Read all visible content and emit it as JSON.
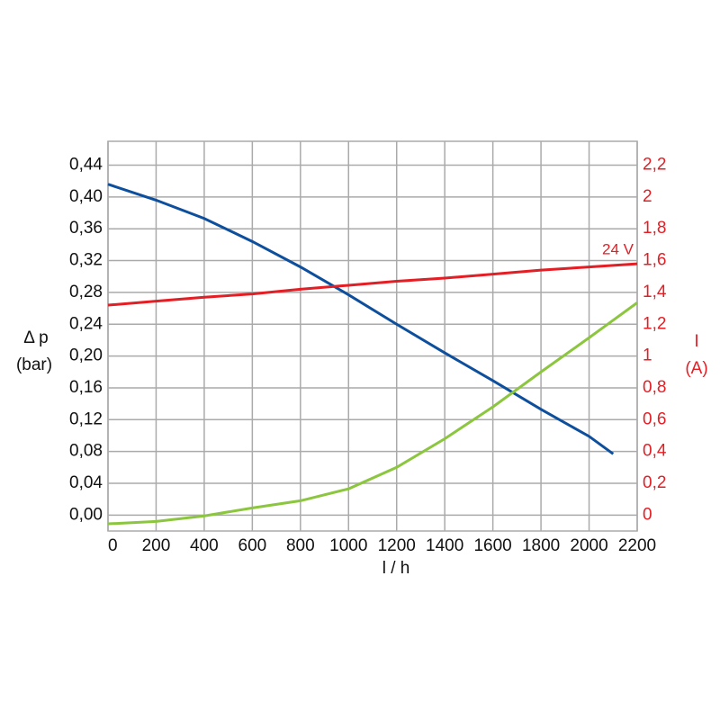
{
  "chart_data": {
    "type": "line",
    "x": [
      0,
      200,
      400,
      600,
      800,
      1000,
      1200,
      1400,
      1600,
      1800,
      2000,
      2100,
      2200
    ],
    "xlim": [
      0,
      2200
    ],
    "xticks": [
      0,
      200,
      400,
      600,
      800,
      1000,
      1200,
      1400,
      1600,
      1800,
      2000,
      2200
    ],
    "xlabel": "l / h",
    "ylabel": [
      "Δ p",
      "(bar)"
    ],
    "ylim": [
      -0.02,
      0.47
    ],
    "yticks": [
      {
        "value": 0,
        "label": "0,00"
      },
      {
        "value": 0.04,
        "label": "0,04"
      },
      {
        "value": 0.08,
        "label": "0,08"
      },
      {
        "value": 0.12,
        "label": "0,12"
      },
      {
        "value": 0.16,
        "label": "0,16"
      },
      {
        "value": 0.2,
        "label": "0,20"
      },
      {
        "value": 0.24,
        "label": "0,24"
      },
      {
        "value": 0.28,
        "label": "0,28"
      },
      {
        "value": 0.32,
        "label": "0,32"
      },
      {
        "value": 0.36,
        "label": "0,36"
      },
      {
        "value": 0.4,
        "label": "0,40"
      },
      {
        "value": 0.44,
        "label": "0,44"
      }
    ],
    "y2label": [
      "I",
      "(A)"
    ],
    "y2lim": [
      -0.1,
      2.35
    ],
    "y2ticks": [
      0,
      {
        "value": 0.2,
        "label": "0,2"
      },
      {
        "value": 0.4,
        "label": "0,4"
      },
      {
        "value": 0.6,
        "label": "0,6"
      },
      {
        "value": 0.8,
        "label": "0,8"
      },
      1,
      {
        "value": 1.2,
        "label": "1,2"
      },
      {
        "value": 1.4,
        "label": "1,4"
      },
      {
        "value": 1.6,
        "label": "1,6"
      },
      {
        "value": 1.8,
        "label": "1,8"
      },
      2,
      {
        "value": 2.2,
        "label": "2,2"
      }
    ],
    "y2color": "#e31e24",
    "grid": true,
    "series": [
      {
        "color": "#0d4f9c",
        "values": [
          0.416,
          0.396,
          0.373,
          0.344,
          0.312,
          0.277,
          0.24,
          0.204,
          0.169,
          0.133,
          0.099,
          0.077,
          null
        ]
      },
      {
        "color": "#8cc63f",
        "values": [
          -0.011,
          -0.008,
          -0.001,
          0.009,
          0.018,
          0.033,
          0.06,
          0.096,
          0.136,
          0.18,
          0.223,
          0.245,
          0.267
        ]
      },
      {
        "name": "24 V",
        "color": "#e31e24",
        "axis": "y2",
        "values": [
          1.32,
          1.345,
          1.37,
          1.39,
          1.42,
          1.445,
          1.47,
          1.49,
          1.515,
          1.54,
          1.56,
          1.57,
          1.58
        ]
      }
    ]
  }
}
